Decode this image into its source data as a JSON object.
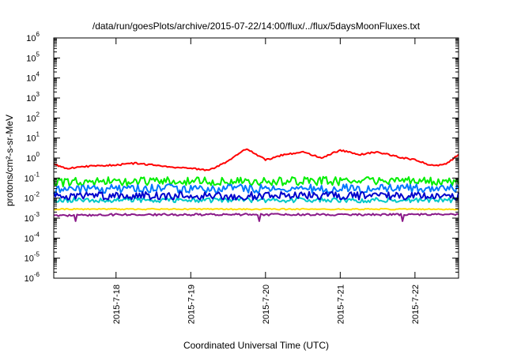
{
  "chart_data": {
    "type": "line",
    "title": "/data/run/goesPlots/archive/2015-07-22/14:00/flux/../flux/5daysMoonFluxes.txt",
    "xlabel": "Coordinated Universal Time (UTC)",
    "ylabel": "protons/cm²-s-sr-MeV",
    "y_scale": "log",
    "ylim": [
      1e-06,
      1000000.0
    ],
    "y_ticks": [
      {
        "exp": "-6",
        "value": 1e-06
      },
      {
        "exp": "-5",
        "value": 1e-05
      },
      {
        "exp": "-4",
        "value": 0.0001
      },
      {
        "exp": "-3",
        "value": 0.001
      },
      {
        "exp": "-2",
        "value": 0.01
      },
      {
        "exp": "-1",
        "value": 0.1
      },
      {
        "exp": "0",
        "value": 1
      },
      {
        "exp": "1",
        "value": 10
      },
      {
        "exp": "2",
        "value": 100
      },
      {
        "exp": "3",
        "value": 1000
      },
      {
        "exp": "4",
        "value": 10000
      },
      {
        "exp": "5",
        "value": 100000
      },
      {
        "exp": "6",
        "value": 1000000
      }
    ],
    "xlim": [
      "2015-07-17 04:00",
      "2015-07-22 14:00"
    ],
    "x_ticks": [
      "2015-7-18",
      "2015-7-19",
      "2015-7-20",
      "2015-7-21",
      "2015-7-22"
    ],
    "x_tick_dates": [
      "2015-07-18 00:00",
      "2015-07-19 00:00",
      "2015-07-20 00:00",
      "2015-07-21 00:00",
      "2015-07-22 00:00"
    ],
    "grid": false,
    "legend": "none",
    "series": [
      {
        "color": "#ff0000",
        "noise": 0.04,
        "x": [
          "2015-07-17 04:00",
          "2015-07-17 08:00",
          "2015-07-17 16:00",
          "2015-07-18 00:00",
          "2015-07-18 06:00",
          "2015-07-18 12:00",
          "2015-07-18 18:00",
          "2015-07-19 00:00",
          "2015-07-19 06:00",
          "2015-07-19 12:00",
          "2015-07-19 18:00",
          "2015-07-20 00:00",
          "2015-07-20 06:00",
          "2015-07-20 12:00",
          "2015-07-20 18:00",
          "2015-07-21 00:00",
          "2015-07-21 06:00",
          "2015-07-21 12:00",
          "2015-07-21 18:00",
          "2015-07-22 00:00",
          "2015-07-22 06:00",
          "2015-07-22 10:00",
          "2015-07-22 14:00"
        ],
        "y": [
          0.5,
          0.3,
          0.4,
          0.45,
          0.55,
          0.45,
          0.35,
          0.3,
          0.25,
          0.7,
          3.0,
          0.8,
          1.5,
          2.0,
          1.0,
          2.5,
          1.5,
          2.0,
          1.2,
          0.8,
          0.4,
          0.5,
          1.5
        ]
      },
      {
        "color": "#00ee00",
        "noise": 0.22,
        "x": [
          "2015-07-17 04:00",
          "2015-07-18 00:00",
          "2015-07-19 00:00",
          "2015-07-20 00:00",
          "2015-07-21 00:00",
          "2015-07-22 00:00",
          "2015-07-22 14:00"
        ],
        "y": [
          0.06,
          0.07,
          0.07,
          0.07,
          0.07,
          0.07,
          0.07
        ]
      },
      {
        "color": "#0077ff",
        "noise": 0.22,
        "x": [
          "2015-07-17 04:00",
          "2015-07-18 00:00",
          "2015-07-19 00:00",
          "2015-07-20 00:00",
          "2015-07-21 00:00",
          "2015-07-22 00:00",
          "2015-07-22 14:00"
        ],
        "y": [
          0.025,
          0.03,
          0.03,
          0.03,
          0.03,
          0.03,
          0.03
        ]
      },
      {
        "color": "#00c8c8",
        "noise": 0.12,
        "x": [
          "2015-07-17 04:00",
          "2015-07-18 00:00",
          "2015-07-19 00:00",
          "2015-07-20 00:00",
          "2015-07-21 00:00",
          "2015-07-22 00:00",
          "2015-07-22 14:00"
        ],
        "y": [
          0.008,
          0.008,
          0.008,
          0.008,
          0.008,
          0.008,
          0.008
        ]
      },
      {
        "color": "#0000cc",
        "noise": 0.2,
        "x": [
          "2015-07-17 04:00",
          "2015-07-18 00:00",
          "2015-07-19 00:00",
          "2015-07-20 00:00",
          "2015-07-21 00:00",
          "2015-07-22 00:00",
          "2015-07-22 14:00"
        ],
        "y": [
          0.012,
          0.013,
          0.013,
          0.013,
          0.013,
          0.013,
          0.013
        ]
      },
      {
        "color": "#ffdd00",
        "noise": 0.03,
        "x": [
          "2015-07-17 04:00",
          "2015-07-18 00:00",
          "2015-07-19 00:00",
          "2015-07-20 00:00",
          "2015-07-21 00:00",
          "2015-07-22 00:00",
          "2015-07-22 14:00"
        ],
        "y": [
          0.0028,
          0.0028,
          0.0028,
          0.0028,
          0.0028,
          0.0028,
          0.0028
        ]
      },
      {
        "color": "#8b1a89",
        "noise": 0.05,
        "x": [
          "2015-07-17 04:00",
          "2015-07-18 00:00",
          "2015-07-19 00:00",
          "2015-07-20 00:00",
          "2015-07-21 00:00",
          "2015-07-22 00:00",
          "2015-07-22 14:00"
        ],
        "y": [
          0.0013,
          0.0015,
          0.0015,
          0.0015,
          0.0015,
          0.0015,
          0.0015
        ],
        "dips": [
          {
            "x": "2015-07-17 11:00",
            "y": 0.0007
          },
          {
            "x": "2015-07-19 22:00",
            "y": 0.0007
          },
          {
            "x": "2015-07-21 20:00",
            "y": 0.0007
          }
        ]
      }
    ]
  }
}
